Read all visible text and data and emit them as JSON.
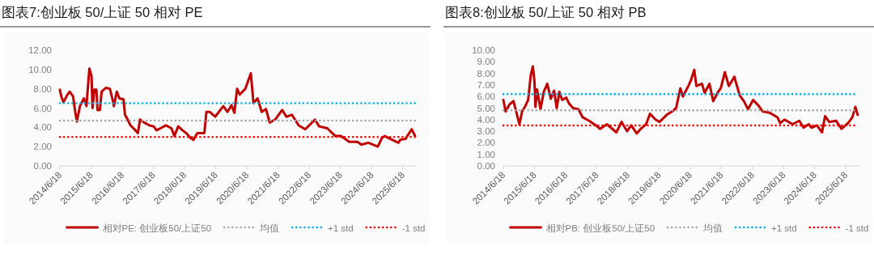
{
  "chart_data": [
    {
      "type": "line",
      "title": "图表7:创业板 50/上证 50 相对 PE",
      "legend": "bottom",
      "grid": false,
      "xlim": [
        "2014-06-18",
        "2025-11-20"
      ],
      "xticks": [
        {
          "value": "2014-06-18",
          "label": "2014/6/18"
        },
        {
          "value": "2015-06-18",
          "label": "2015/6/18"
        },
        {
          "value": "2016-06-18",
          "label": "2016/6/18"
        },
        {
          "value": "2017-06-18",
          "label": "2017/6/18"
        },
        {
          "value": "2018-06-18",
          "label": "2018/6/18"
        },
        {
          "value": "2019-06-18",
          "label": "2019/6/18"
        },
        {
          "value": "2020-06-18",
          "label": "2020/6/18"
        },
        {
          "value": "2021-06-18",
          "label": "2021/6/18"
        },
        {
          "value": "2022-06-18",
          "label": "2022/6/18"
        },
        {
          "value": "2023-06-18",
          "label": "2023/6/18"
        },
        {
          "value": "2024-06-18",
          "label": "2024/6/18"
        },
        {
          "value": "2025-06-18",
          "label": "2025/6/18"
        }
      ],
      "ylim": [
        0,
        12
      ],
      "yticks": [
        {
          "value": 0,
          "label": "0.00"
        },
        {
          "value": 2,
          "label": "2.00"
        },
        {
          "value": 4,
          "label": "4.00"
        },
        {
          "value": 6,
          "label": "6.00"
        },
        {
          "value": 8,
          "label": "8.00"
        },
        {
          "value": 10,
          "label": "10.00"
        },
        {
          "value": 12,
          "label": "12.00"
        }
      ],
      "series": [
        {
          "name": "相对PE: 创业板50/上证50",
          "color": "#c00000",
          "line_style": "solid",
          "x": [
            "2014-06-18",
            "2014-07-05",
            "2014-07-30",
            "2014-09-15",
            "2014-10-12",
            "2014-11-20",
            "2014-12-15",
            "2015-01-03",
            "2015-02-08",
            "2015-03-25",
            "2015-04-25",
            "2015-05-30",
            "2015-06-24",
            "2015-07-05",
            "2015-07-27",
            "2015-08-20",
            "2015-09-02",
            "2015-09-30",
            "2015-10-20",
            "2015-12-08",
            "2016-01-25",
            "2016-02-25",
            "2016-03-12",
            "2016-04-15",
            "2016-05-15",
            "2016-07-03",
            "2016-07-20",
            "2016-08-20",
            "2016-09-23",
            "2016-11-08",
            "2016-12-18",
            "2017-01-12",
            "2017-03-01",
            "2017-05-03",
            "2017-06-21",
            "2017-07-24",
            "2017-09-08",
            "2017-11-12",
            "2018-01-15",
            "2018-02-18",
            "2018-04-05",
            "2018-05-23",
            "2018-07-08",
            "2018-08-27",
            "2018-09-30",
            "2018-11-15",
            "2019-02-05",
            "2019-03-01",
            "2019-04-10",
            "2019-06-12",
            "2019-09-15",
            "2019-11-03",
            "2019-12-20",
            "2020-01-23",
            "2020-02-24",
            "2020-03-27",
            "2020-05-30",
            "2020-08-03",
            "2020-09-03",
            "2020-10-21",
            "2020-12-08",
            "2021-01-27",
            "2021-03-12",
            "2021-05-15",
            "2021-08-05",
            "2021-09-23",
            "2021-11-27",
            "2022-02-15",
            "2022-05-03",
            "2022-08-25",
            "2022-10-12",
            "2023-01-15",
            "2023-04-20",
            "2023-06-25",
            "2023-09-30",
            "2024-01-03",
            "2024-02-20",
            "2024-05-10",
            "2024-08-30",
            "2024-10-18",
            "2024-11-20",
            "2025-01-23",
            "2025-04-28",
            "2025-05-20",
            "2025-07-20",
            "2025-10-01",
            "2025-11-10"
          ],
          "values": [
            7.9,
            7.2,
            6.6,
            7.4,
            7.7,
            7.2,
            5.6,
            4.6,
            6.2,
            7.0,
            6.2,
            10.1,
            9.3,
            6.0,
            7.9,
            7.9,
            5.8,
            5.8,
            7.7,
            8.1,
            8.0,
            6.9,
            6.2,
            7.7,
            7.0,
            6.9,
            5.3,
            4.8,
            4.2,
            3.8,
            3.4,
            4.8,
            4.5,
            4.2,
            4.1,
            3.7,
            3.9,
            4.2,
            3.9,
            3.1,
            4.1,
            3.7,
            3.4,
            2.9,
            2.7,
            3.4,
            3.4,
            5.6,
            5.6,
            5.1,
            6.2,
            5.6,
            6.3,
            5.5,
            8.0,
            7.4,
            8.0,
            9.6,
            6.5,
            7.0,
            5.6,
            5.9,
            4.5,
            4.8,
            5.8,
            5.1,
            5.3,
            4.2,
            3.8,
            4.8,
            4.1,
            3.9,
            3.1,
            3.1,
            2.5,
            2.5,
            2.2,
            2.4,
            2.0,
            2.9,
            3.1,
            2.8,
            2.4,
            2.7,
            2.8,
            3.8,
            3.1
          ]
        },
        {
          "name": "均值",
          "color": "#a6a6a6",
          "line_style": "dotted",
          "x": [
            "2014-06-18",
            "2025-11-10"
          ],
          "values": [
            4.7,
            4.7
          ]
        },
        {
          "name": "+1 std",
          "color": "#00b0f0",
          "line_style": "dotted",
          "x": [
            "2014-06-18",
            "2025-11-10"
          ],
          "values": [
            6.5,
            6.5
          ]
        },
        {
          "name": "-1 std",
          "color": "#ff0000",
          "line_style": "dotted",
          "x": [
            "2014-06-18",
            "2025-11-10"
          ],
          "values": [
            3.0,
            3.0
          ]
        }
      ]
    },
    {
      "type": "line",
      "title": "图表8:创业板 50/上证 50 相对 PB",
      "legend": "bottom",
      "grid": false,
      "xlim": [
        "2014-06-18",
        "2025-11-25"
      ],
      "xticks": [
        {
          "value": "2014-06-18",
          "label": "2014/6/18"
        },
        {
          "value": "2015-06-18",
          "label": "2015/6/18"
        },
        {
          "value": "2016-06-18",
          "label": "2016/6/18"
        },
        {
          "value": "2017-06-18",
          "label": "2017/6/18"
        },
        {
          "value": "2018-06-18",
          "label": "2018/6/18"
        },
        {
          "value": "2019-06-18",
          "label": "2019/6/18"
        },
        {
          "value": "2020-06-18",
          "label": "2020/6/18"
        },
        {
          "value": "2021-06-18",
          "label": "2021/6/18"
        },
        {
          "value": "2022-06-18",
          "label": "2022/6/18"
        },
        {
          "value": "2023-06-18",
          "label": "2023/6/18"
        },
        {
          "value": "2024-06-18",
          "label": "2024/6/18"
        },
        {
          "value": "2025-06-18",
          "label": "2025/6/18"
        }
      ],
      "ylim": [
        0,
        10
      ],
      "yticks": [
        {
          "value": 0,
          "label": "0.00"
        },
        {
          "value": 1,
          "label": "1.00"
        },
        {
          "value": 2,
          "label": "2.00"
        },
        {
          "value": 3,
          "label": "3.00"
        },
        {
          "value": 4,
          "label": "4.00"
        },
        {
          "value": 5,
          "label": "5.00"
        },
        {
          "value": 6,
          "label": "6.00"
        },
        {
          "value": 7,
          "label": "7.00"
        },
        {
          "value": 8,
          "label": "8.00"
        },
        {
          "value": 9,
          "label": "9.00"
        },
        {
          "value": 10,
          "label": "10.00"
        }
      ],
      "series": [
        {
          "name": "相对PB: 创业板50/上证50",
          "color": "#c00000",
          "line_style": "solid",
          "x": [
            "2014-06-18",
            "2014-07-15",
            "2014-08-28",
            "2014-10-15",
            "2014-11-15",
            "2014-12-24",
            "2015-01-24",
            "2015-03-05",
            "2015-04-05",
            "2015-05-05",
            "2015-05-30",
            "2015-06-18",
            "2015-06-30",
            "2015-07-18",
            "2015-08-28",
            "2015-10-05",
            "2015-11-15",
            "2015-12-27",
            "2016-02-03",
            "2016-03-05",
            "2016-04-05",
            "2016-05-08",
            "2016-06-25",
            "2016-07-27",
            "2016-09-12",
            "2016-11-15",
            "2017-01-03",
            "2017-03-20",
            "2017-06-08",
            "2017-07-27",
            "2017-10-15",
            "2017-12-18",
            "2018-02-03",
            "2018-04-05",
            "2018-06-08",
            "2018-07-27",
            "2018-09-30",
            "2018-11-15",
            "2019-01-18",
            "2019-03-05",
            "2019-05-08",
            "2019-06-25",
            "2019-09-15",
            "2019-11-18",
            "2020-01-05",
            "2020-02-24",
            "2020-03-25",
            "2020-05-27",
            "2020-06-27",
            "2020-08-05",
            "2020-08-30",
            "2020-11-03",
            "2020-12-05",
            "2021-01-30",
            "2021-03-15",
            "2021-05-12",
            "2021-06-12",
            "2021-07-30",
            "2021-09-15",
            "2021-11-18",
            "2022-01-20",
            "2022-03-10",
            "2022-04-27",
            "2022-06-27",
            "2022-08-30",
            "2022-10-18",
            "2023-01-05",
            "2023-04-08",
            "2023-05-10",
            "2023-06-30",
            "2023-10-03",
            "2023-12-20",
            "2024-02-08",
            "2024-04-10",
            "2024-05-12",
            "2024-07-15",
            "2024-09-12",
            "2024-10-18",
            "2024-12-05",
            "2025-02-25",
            "2025-04-28",
            "2025-07-15",
            "2025-09-03",
            "2025-10-08",
            "2025-11-05"
          ],
          "values": [
            5.7,
            4.7,
            5.3,
            5.6,
            4.7,
            3.6,
            4.7,
            5.2,
            5.7,
            7.8,
            8.6,
            7.3,
            5.1,
            6.6,
            4.9,
            6.4,
            7.1,
            5.8,
            6.5,
            5.0,
            6.4,
            5.7,
            5.9,
            5.4,
            5.0,
            4.9,
            4.2,
            3.9,
            3.5,
            3.2,
            3.6,
            3.2,
            2.9,
            3.8,
            3.0,
            3.5,
            2.8,
            3.2,
            3.6,
            4.5,
            4.0,
            3.8,
            4.4,
            4.7,
            5.0,
            6.7,
            6.0,
            6.9,
            7.4,
            8.3,
            6.9,
            7.1,
            6.3,
            7.1,
            5.6,
            6.4,
            6.7,
            8.1,
            6.9,
            7.7,
            6.1,
            5.6,
            4.9,
            5.7,
            5.2,
            4.7,
            4.6,
            4.2,
            3.7,
            4.0,
            3.6,
            3.9,
            3.3,
            3.6,
            3.3,
            3.5,
            2.9,
            4.3,
            3.8,
            3.9,
            3.2,
            3.7,
            4.2,
            5.1,
            4.4
          ]
        },
        {
          "name": "均值",
          "color": "#a6a6a6",
          "line_style": "dotted",
          "x": [
            "2014-06-18",
            "2025-11-05"
          ],
          "values": [
            4.8,
            4.8
          ]
        },
        {
          "name": "+1 std",
          "color": "#00b0f0",
          "line_style": "dotted",
          "x": [
            "2014-06-18",
            "2025-11-05"
          ],
          "values": [
            6.2,
            6.2
          ]
        },
        {
          "name": "-1 std",
          "color": "#ff0000",
          "line_style": "dotted",
          "x": [
            "2014-06-18",
            "2025-11-05"
          ],
          "values": [
            3.5,
            3.5
          ]
        }
      ]
    }
  ]
}
